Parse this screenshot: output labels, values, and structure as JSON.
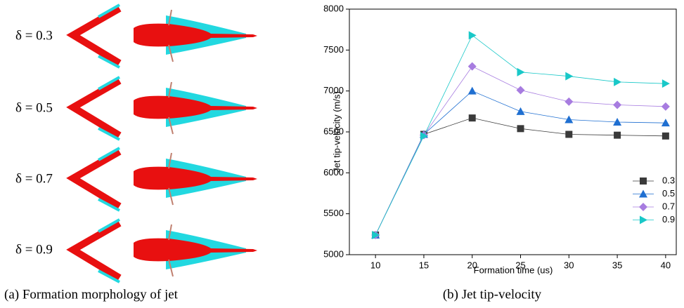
{
  "panel_a": {
    "labels": [
      "δ = 0.3",
      "δ = 0.5",
      "δ = 0.7",
      "δ = 0.9"
    ],
    "caption": "(a) Formation morphology of jet"
  },
  "chart_data": {
    "type": "line",
    "caption": "(b) Jet tip-velocity",
    "x_label": "Formation time (us)",
    "y_label": "Jet tip-velocity (m/s)",
    "x": [
      10,
      15,
      20,
      25,
      30,
      35,
      40
    ],
    "series": [
      {
        "name": "0.3",
        "color": "#3a3a3a",
        "marker": "square",
        "values": [
          5240,
          6470,
          6670,
          6540,
          6470,
          6460,
          6450
        ]
      },
      {
        "name": "0.5",
        "color": "#1f6fd1",
        "marker": "triangle-up",
        "values": [
          5240,
          6470,
          7000,
          6750,
          6650,
          6620,
          6610
        ]
      },
      {
        "name": "0.7",
        "color": "#a77ce0",
        "marker": "diamond",
        "values": [
          5240,
          6460,
          7300,
          7010,
          6870,
          6830,
          6810
        ]
      },
      {
        "name": "0.9",
        "color": "#19c8c8",
        "marker": "triangle-right",
        "values": [
          5240,
          6450,
          7680,
          7230,
          7180,
          7110,
          7090
        ]
      }
    ],
    "xlim": [
      7.3,
      41.1
    ],
    "xticks": [
      10,
      15,
      20,
      25,
      30,
      35,
      40
    ],
    "ylim": [
      5000,
      8000
    ],
    "yticks": [
      5000,
      5500,
      6000,
      6500,
      7000,
      7500,
      8000
    ],
    "legend": "lower right"
  }
}
